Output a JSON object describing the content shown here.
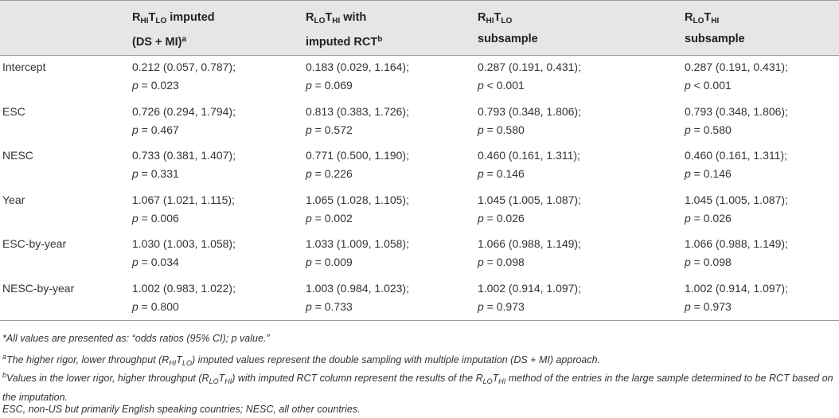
{
  "table": {
    "columns": [
      [
        "R",
        "HI",
        "T",
        "LO",
        " imputed",
        "(DS + MI)",
        "a"
      ],
      [
        "R",
        "LO",
        "T",
        "HI",
        " with",
        "imputed RCT",
        "b"
      ],
      [
        "R",
        "HI",
        "T",
        "LO",
        "subsample"
      ],
      [
        "R",
        "LO",
        "T",
        "HI",
        "subsample"
      ]
    ],
    "rows": [
      {
        "label": "Intercept",
        "cells": [
          [
            "0.212 (0.057, 0.787);",
            "p",
            " = 0.023"
          ],
          [
            "0.183 (0.029, 1.164);",
            "p",
            " = 0.069"
          ],
          [
            "0.287 (0.191, 0.431);",
            "p",
            " < 0.001"
          ],
          [
            "0.287 (0.191, 0.431);",
            "p",
            " < 0.001"
          ]
        ]
      },
      {
        "label": "ESC",
        "cells": [
          [
            "0.726 (0.294, 1.794);",
            "p",
            " = 0.467"
          ],
          [
            "0.813 (0.383, 1.726);",
            "p",
            " = 0.572"
          ],
          [
            "0.793 (0.348, 1.806);",
            "p",
            " = 0.580"
          ],
          [
            "0.793 (0.348, 1.806);",
            "p",
            " = 0.580"
          ]
        ]
      },
      {
        "label": "NESC",
        "cells": [
          [
            "0.733 (0.381, 1.407);",
            "p",
            " = 0.331"
          ],
          [
            "0.771 (0.500, 1.190);",
            "p",
            " = 0.226"
          ],
          [
            "0.460 (0.161, 1.311);",
            "p",
            " = 0.146"
          ],
          [
            "0.460 (0.161, 1.311);",
            "p",
            " = 0.146"
          ]
        ]
      },
      {
        "label": "Year",
        "cells": [
          [
            "1.067 (1.021, 1.115);",
            "p",
            " = 0.006"
          ],
          [
            "1.065 (1.028, 1.105);",
            "p",
            " = 0.002"
          ],
          [
            "1.045 (1.005, 1.087);",
            "p",
            " = 0.026"
          ],
          [
            "1.045 (1.005, 1.087);",
            "p",
            " = 0.026"
          ]
        ]
      },
      {
        "label": "ESC-by-year",
        "cells": [
          [
            "1.030 (1.003, 1.058);",
            "p",
            " = 0.034"
          ],
          [
            "1.033 (1.009, 1.058);",
            "p",
            " = 0.009"
          ],
          [
            "1.066 (0.988, 1.149);",
            "p",
            " = 0.098"
          ],
          [
            "1.066 (0.988, 1.149);",
            "p",
            " = 0.098"
          ]
        ]
      },
      {
        "label": "NESC-by-year",
        "cells": [
          [
            "1.002 (0.983, 1.022);",
            "p",
            " = 0.800"
          ],
          [
            "1.003 (0.984, 1.023);",
            "p",
            " = 0.733"
          ],
          [
            "1.002 (0.914, 1.097);",
            "p",
            " = 0.973"
          ],
          [
            "1.002 (0.914, 1.097);",
            "p",
            " = 0.973"
          ]
        ]
      }
    ]
  },
  "footnotes": [
    [
      "*All values are presented as: “odds ratios (95% CI); p value.”"
    ],
    [
      "a",
      "The higher rigor, lower throughput (R",
      "HI",
      "T",
      "LO",
      ") imputed values represent the double sampling with multiple imputation (DS + MI) approach."
    ],
    [
      "b",
      "Values in the lower rigor, higher throughput (R",
      "LO",
      "T",
      "HI",
      ") with imputed RCT column represent the results of the R",
      "LO",
      "T",
      "HI",
      " method of the entries in the large sample determined to be RCT based on the imputation."
    ],
    [
      "ESC, non-US but primarily English speaking countries; NESC, all other countries."
    ]
  ]
}
